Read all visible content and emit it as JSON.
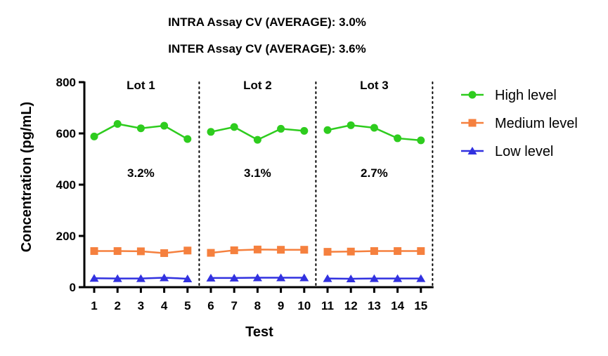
{
  "header": {
    "intra": "INTRA Assay CV (AVERAGE): 3.0%",
    "inter": "INTER Assay CV (AVERAGE): 3.6%"
  },
  "chart_data": {
    "type": "line",
    "xlabel": "Test",
    "ylabel": "Concentration (pg/mL)",
    "x": [
      1,
      2,
      3,
      4,
      5,
      6,
      7,
      8,
      9,
      10,
      11,
      12,
      13,
      14,
      15
    ],
    "ylim": [
      0,
      800
    ],
    "yticks": [
      0,
      200,
      400,
      600,
      800
    ],
    "series": [
      {
        "name": "High level",
        "color": "#2ecc1e",
        "marker": "circle",
        "values": [
          588,
          637,
          620,
          630,
          578,
          606,
          625,
          575,
          618,
          610,
          613,
          632,
          622,
          581,
          573
        ]
      },
      {
        "name": "Medium level",
        "color": "#f5803e",
        "marker": "square",
        "values": [
          141,
          141,
          140,
          133,
          143,
          134,
          144,
          147,
          146,
          146,
          138,
          139,
          141,
          141,
          141
        ]
      },
      {
        "name": "Low level",
        "color": "#3131e0",
        "marker": "triangle",
        "values": [
          35,
          34,
          34,
          37,
          33,
          36,
          36,
          37,
          37,
          37,
          34,
          33,
          34,
          34,
          34
        ]
      }
    ],
    "lots": [
      {
        "label": "Lot 1",
        "cv": "3.2%",
        "tests": [
          1,
          5
        ]
      },
      {
        "label": "Lot 2",
        "cv": "3.1%",
        "tests": [
          6,
          10
        ]
      },
      {
        "label": "Lot 3",
        "cv": "2.7%",
        "tests": [
          11,
          15
        ]
      }
    ],
    "legend_position": "right",
    "grid": false
  }
}
